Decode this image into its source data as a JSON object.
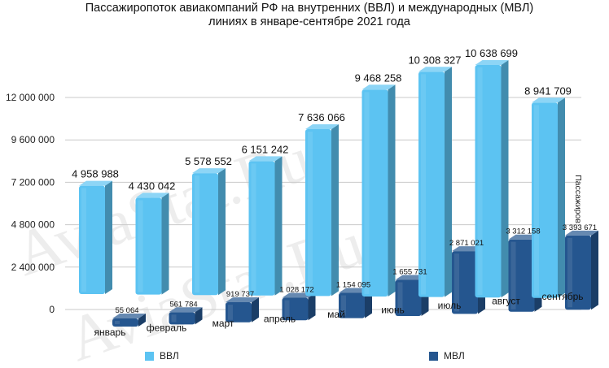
{
  "title_line1": "Пассажиропоток авиакомпаний РФ на внутренних (ВВЛ) и международных (МВЛ)",
  "title_line2": "линиях в январе-сентябре 2021 года",
  "watermark": "AviaStat.Ru",
  "colors": {
    "domestic": "#5cc3f2",
    "international": "#25568f"
  },
  "chart_data": {
    "type": "bar",
    "ylabel": "Пассажиров",
    "ylim": [
      0,
      12000000
    ],
    "yticks": [
      "0",
      "2 400 000",
      "4 800 000",
      "7 200 000",
      "9 600 000",
      "12 000 000"
    ],
    "ytick_values": [
      0,
      2400000,
      4800000,
      7200000,
      9600000,
      12000000
    ],
    "categories": [
      "январь",
      "февраль",
      "март",
      "апрель",
      "май",
      "июнь",
      "июль",
      "август",
      "сентябрь"
    ],
    "series": [
      {
        "name": "ВВЛ",
        "values": [
          4958988,
          4430042,
          5578552,
          6151242,
          7636066,
          9468258,
          10308327,
          10638699,
          8941709
        ],
        "labels": [
          "4 958 988",
          "4 430 042",
          "5 578 552",
          "6 151 242",
          "7 636 066",
          "9 468 258",
          "10 308 327",
          "10 638 699",
          "8 941 709"
        ]
      },
      {
        "name": "МВЛ",
        "values": [
          55064,
          561784,
          919737,
          1028172,
          1154095,
          1655731,
          2871021,
          3312158,
          3393671
        ],
        "labels": [
          "55 064",
          "561 784",
          "919 737",
          "1 028 172",
          "1 154 095",
          "1 655 731",
          "2 871 021",
          "3 312 158",
          "3 393 671"
        ]
      }
    ],
    "grid": true,
    "legend_position": "bottom"
  }
}
